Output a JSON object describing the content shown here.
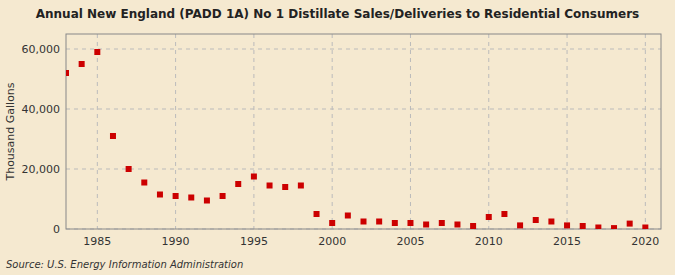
{
  "chart_data": {
    "type": "scatter",
    "title": "Annual New England (PADD 1A) No 1 Distillate Sales/Deliveries to Residential Consumers",
    "y_label": "Thousand Gallons",
    "annotations": [
      "Source: U.S. Energy Information Administration"
    ],
    "x": [
      1983,
      1984,
      1985,
      1986,
      1987,
      1988,
      1989,
      1990,
      1991,
      1992,
      1993,
      1994,
      1995,
      1996,
      1997,
      1998,
      1999,
      2000,
      2001,
      2002,
      2003,
      2004,
      2005,
      2006,
      2007,
      2008,
      2009,
      2010,
      2011,
      2012,
      2013,
      2014,
      2015,
      2016,
      2017,
      2018,
      2019,
      2020
    ],
    "values": [
      52000,
      55000,
      59000,
      31000,
      20000,
      15500,
      11500,
      11000,
      10500,
      9500,
      11000,
      15000,
      17500,
      14500,
      14000,
      14500,
      5000,
      2000,
      4500,
      2500,
      2500,
      2000,
      2000,
      1500,
      2000,
      1500,
      1000,
      4000,
      5000,
      1200,
      3000,
      2500,
      1200,
      1000,
      500,
      300,
      1800,
      500
    ],
    "color": "#cc0000",
    "marker": "square",
    "xlim": [
      1983,
      2021
    ],
    "ylim": [
      0,
      65000
    ],
    "xticks": [
      1985,
      1990,
      1995,
      2000,
      2005,
      2010,
      2015,
      2020
    ],
    "yticks": [
      0,
      {
        "value": 20000,
        "label": "20,000"
      },
      {
        "value": 40000,
        "label": "40,000"
      },
      {
        "value": 60000,
        "label": "60,000"
      }
    ],
    "grid": true
  }
}
